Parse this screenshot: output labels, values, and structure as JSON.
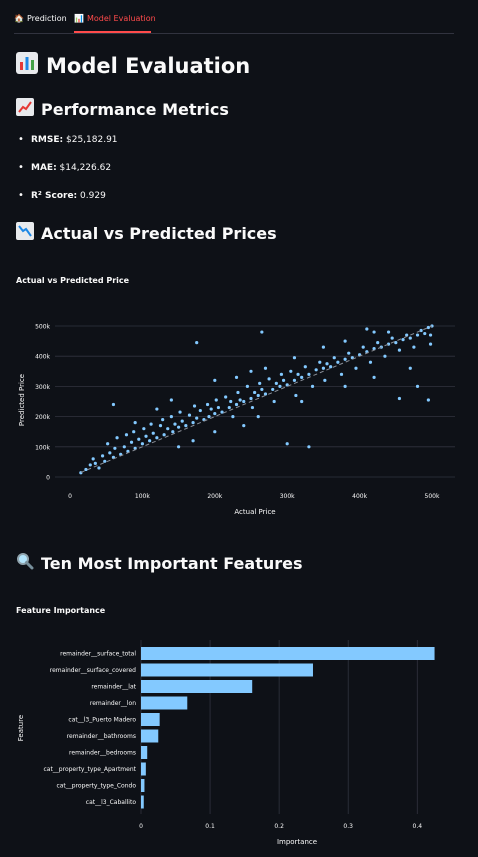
{
  "tabs": [
    {
      "icon": "house-icon",
      "label": "Prediction"
    },
    {
      "icon": "bar-chart-icon",
      "label": "Model Evaluation"
    }
  ],
  "page_title": "Model Evaluation",
  "sections": {
    "metrics_title": "Performance Metrics",
    "scatter_title": "Actual vs Predicted Prices",
    "features_title": "Ten Most Important Features"
  },
  "metrics": [
    {
      "label": "RMSE:",
      "value": "$25,182.91"
    },
    {
      "label": "MAE:",
      "value": "$14,226.62"
    },
    {
      "label": "R² Score:",
      "value": "0.929"
    }
  ],
  "colors": {
    "background": "#0e1117",
    "accent": "#ff4b4b",
    "mark": "#83c9ff",
    "grid": "#31333f"
  },
  "chart_data": [
    {
      "type": "scatter",
      "title": "Actual vs Predicted Price",
      "xlabel": "Actual Price",
      "ylabel": "Predicted Price",
      "xlim": [
        0,
        500000
      ],
      "ylim": [
        0,
        500000
      ],
      "xticks": [
        0,
        100000,
        200000,
        300000,
        400000,
        500000
      ],
      "xtick_labels": [
        "0",
        "100k",
        "200k",
        "300k",
        "400k",
        "500k"
      ],
      "yticks": [
        0,
        100000,
        200000,
        300000,
        400000,
        500000
      ],
      "ytick_labels": [
        "0",
        "100k",
        "200k",
        "300k",
        "400k",
        "500k"
      ],
      "reference_line": [
        [
          15000,
          15000
        ],
        [
          500000,
          500000
        ]
      ],
      "points": [
        [
          15000,
          14000
        ],
        [
          22000,
          25000
        ],
        [
          28000,
          40000
        ],
        [
          32000,
          60000
        ],
        [
          35000,
          45000
        ],
        [
          40000,
          30000
        ],
        [
          45000,
          70000
        ],
        [
          48000,
          52000
        ],
        [
          52000,
          110000
        ],
        [
          55000,
          80000
        ],
        [
          60000,
          65000
        ],
        [
          62000,
          95000
        ],
        [
          65000,
          130000
        ],
        [
          70000,
          75000
        ],
        [
          75000,
          100000
        ],
        [
          78000,
          140000
        ],
        [
          80000,
          85000
        ],
        [
          85000,
          115000
        ],
        [
          88000,
          150000
        ],
        [
          90000,
          95000
        ],
        [
          95000,
          125000
        ],
        [
          100000,
          110000
        ],
        [
          102000,
          160000
        ],
        [
          105000,
          135000
        ],
        [
          110000,
          120000
        ],
        [
          112000,
          175000
        ],
        [
          115000,
          145000
        ],
        [
          120000,
          130000
        ],
        [
          125000,
          170000
        ],
        [
          128000,
          190000
        ],
        [
          130000,
          140000
        ],
        [
          135000,
          160000
        ],
        [
          140000,
          200000
        ],
        [
          142000,
          150000
        ],
        [
          145000,
          175000
        ],
        [
          150000,
          165000
        ],
        [
          152000,
          215000
        ],
        [
          155000,
          185000
        ],
        [
          160000,
          170000
        ],
        [
          165000,
          205000
        ],
        [
          170000,
          180000
        ],
        [
          172000,
          235000
        ],
        [
          175000,
          195000
        ],
        [
          180000,
          220000
        ],
        [
          185000,
          190000
        ],
        [
          190000,
          240000
        ],
        [
          192000,
          200000
        ],
        [
          195000,
          225000
        ],
        [
          200000,
          210000
        ],
        [
          202000,
          255000
        ],
        [
          205000,
          230000
        ],
        [
          210000,
          215000
        ],
        [
          215000,
          265000
        ],
        [
          220000,
          230000
        ],
        [
          222000,
          250000
        ],
        [
          225000,
          200000
        ],
        [
          230000,
          240000
        ],
        [
          232000,
          280000
        ],
        [
          235000,
          255000
        ],
        [
          240000,
          250000
        ],
        [
          245000,
          300000
        ],
        [
          250000,
          260000
        ],
        [
          252000,
          230000
        ],
        [
          255000,
          280000
        ],
        [
          260000,
          270000
        ],
        [
          262000,
          310000
        ],
        [
          265000,
          290000
        ],
        [
          270000,
          275000
        ],
        [
          275000,
          325000
        ],
        [
          280000,
          290000
        ],
        [
          282000,
          250000
        ],
        [
          285000,
          310000
        ],
        [
          290000,
          300000
        ],
        [
          292000,
          340000
        ],
        [
          295000,
          320000
        ],
        [
          300000,
          305000
        ],
        [
          305000,
          350000
        ],
        [
          310000,
          320000
        ],
        [
          312000,
          270000
        ],
        [
          315000,
          340000
        ],
        [
          320000,
          330000
        ],
        [
          325000,
          365000
        ],
        [
          330000,
          340000
        ],
        [
          335000,
          300000
        ],
        [
          340000,
          355000
        ],
        [
          345000,
          380000
        ],
        [
          350000,
          360000
        ],
        [
          352000,
          320000
        ],
        [
          355000,
          375000
        ],
        [
          360000,
          365000
        ],
        [
          365000,
          395000
        ],
        [
          370000,
          380000
        ],
        [
          375000,
          340000
        ],
        [
          380000,
          390000
        ],
        [
          385000,
          410000
        ],
        [
          390000,
          395000
        ],
        [
          395000,
          360000
        ],
        [
          400000,
          405000
        ],
        [
          405000,
          430000
        ],
        [
          410000,
          415000
        ],
        [
          415000,
          380000
        ],
        [
          420000,
          425000
        ],
        [
          425000,
          445000
        ],
        [
          430000,
          430000
        ],
        [
          435000,
          400000
        ],
        [
          440000,
          440000
        ],
        [
          445000,
          460000
        ],
        [
          450000,
          445000
        ],
        [
          455000,
          420000
        ],
        [
          460000,
          455000
        ],
        [
          465000,
          470000
        ],
        [
          470000,
          460000
        ],
        [
          475000,
          430000
        ],
        [
          480000,
          470000
        ],
        [
          485000,
          485000
        ],
        [
          490000,
          475000
        ],
        [
          495000,
          495000
        ],
        [
          498000,
          440000
        ],
        [
          500000,
          500000
        ],
        [
          498000,
          470000
        ],
        [
          60000,
          240000
        ],
        [
          175000,
          445000
        ],
        [
          265000,
          480000
        ],
        [
          330000,
          100000
        ],
        [
          300000,
          110000
        ],
        [
          410000,
          490000
        ],
        [
          440000,
          480000
        ],
        [
          455000,
          260000
        ],
        [
          495000,
          255000
        ],
        [
          480000,
          300000
        ],
        [
          120000,
          225000
        ],
        [
          200000,
          320000
        ],
        [
          250000,
          350000
        ],
        [
          380000,
          450000
        ],
        [
          350000,
          430000
        ],
        [
          420000,
          480000
        ],
        [
          90000,
          180000
        ],
        [
          140000,
          255000
        ],
        [
          230000,
          330000
        ],
        [
          270000,
          360000
        ],
        [
          310000,
          395000
        ],
        [
          200000,
          150000
        ],
        [
          260000,
          200000
        ],
        [
          320000,
          250000
        ],
        [
          380000,
          300000
        ],
        [
          420000,
          330000
        ],
        [
          470000,
          360000
        ],
        [
          170000,
          120000
        ],
        [
          150000,
          100000
        ],
        [
          240000,
          170000
        ]
      ]
    },
    {
      "type": "bar",
      "orientation": "horizontal",
      "title": "Feature Importance",
      "xlabel": "Importance",
      "ylabel": "Feature",
      "xlim": [
        0,
        0.43
      ],
      "xticks": [
        0,
        0.1,
        0.2,
        0.3,
        0.4
      ],
      "xtick_labels": [
        "0",
        "0.1",
        "0.2",
        "0.3",
        "0.4"
      ],
      "categories": [
        "remainder__surface_total",
        "remainder__surface_covered",
        "remainder__lat",
        "remainder__lon",
        "cat__l3_Puerto Madero",
        "remainder__bathrooms",
        "remainder__bedrooms",
        "cat__property_type_Apartment",
        "cat__property_type_Condo",
        "cat__l3_Caballito"
      ],
      "values": [
        0.425,
        0.249,
        0.161,
        0.067,
        0.027,
        0.025,
        0.009,
        0.007,
        0.005,
        0.004
      ]
    }
  ]
}
